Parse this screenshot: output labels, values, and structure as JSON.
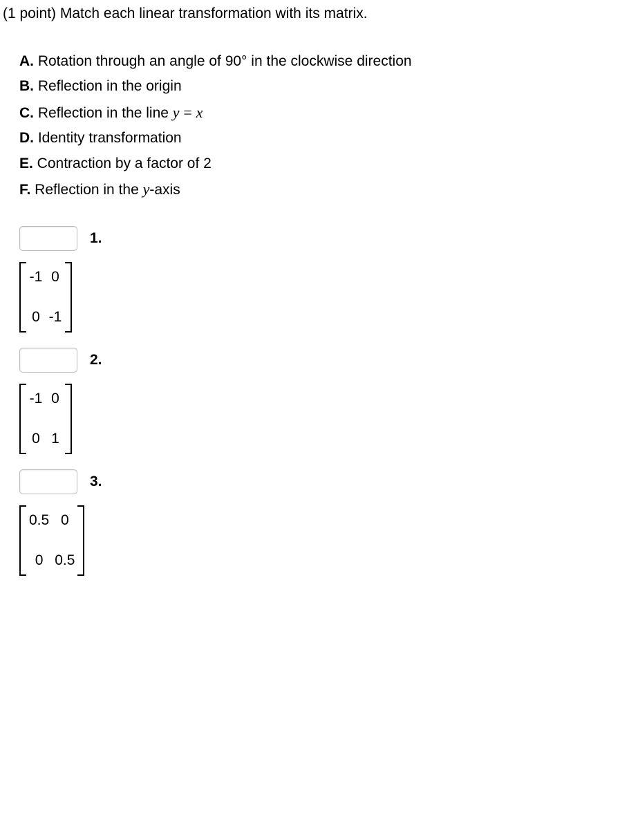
{
  "header_text": "(1 point) Match each linear transformation with its matrix.",
  "options": [
    {
      "letter": "A.",
      "text_before": " Rotation through an angle of ",
      "math_html": "90°",
      "text_after": " in the clockwise direction"
    },
    {
      "letter": "B.",
      "text_before": " Reflection in the origin",
      "math_html": "",
      "text_after": ""
    },
    {
      "letter": "C.",
      "text_before": " Reflection in the line ",
      "math_html": "<span class='math-ital'>y</span> <span class='math-up'>=</span> <span class='math-ital'>x</span>",
      "text_after": ""
    },
    {
      "letter": "D.",
      "text_before": " Identity transformation",
      "math_html": "",
      "text_after": ""
    },
    {
      "letter": "E.",
      "text_before": " Contraction by a factor of 2",
      "math_html": "",
      "text_after": ""
    },
    {
      "letter": "F.",
      "text_before": " Reflection in the ",
      "math_html": "<span class='math-ital'>y</span>",
      "text_after": "-axis"
    }
  ],
  "questions": [
    {
      "num": "1.",
      "matrix": {
        "rows": 2,
        "cols": 2,
        "cells": [
          "-1",
          "0",
          "0",
          "-1"
        ]
      }
    },
    {
      "num": "2.",
      "matrix": {
        "rows": 2,
        "cols": 2,
        "cells": [
          "-1",
          "0",
          "0",
          "1"
        ]
      }
    },
    {
      "num": "3.",
      "matrix": {
        "rows": 2,
        "cols": 2,
        "cells": [
          "0.5",
          "0",
          "0",
          "0.5"
        ]
      }
    }
  ]
}
